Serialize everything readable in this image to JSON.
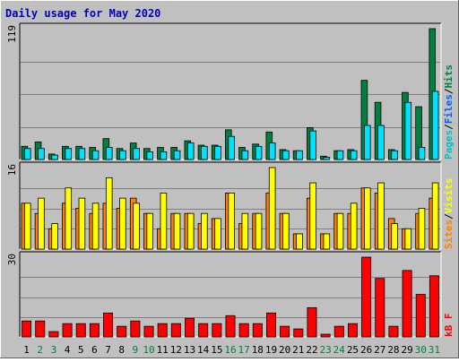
{
  "title": "Daily usage for May 2020",
  "colors": {
    "background": "#c0c0c0",
    "frame": "#ececec",
    "title": "#0000c0",
    "grid": "#808080",
    "hits": "#008040",
    "files": "#00e0ff",
    "pages": "#00c0c0",
    "sites": "#ffff00",
    "visits": "#ff8000",
    "kbytes": "#ff0000",
    "weekday_label": "#000000",
    "weekend_label": "#008040",
    "separator": "#000000"
  },
  "chart_data": [
    {
      "type": "bar",
      "panel": "hits-files-pages",
      "title": "",
      "ylabel_parts": [
        {
          "text": "Pages",
          "color": "#00c0c0"
        },
        {
          "text": "/",
          "color": "#000000"
        },
        {
          "text": "Files",
          "color": "#0060ff"
        },
        {
          "text": "/",
          "color": "#000000"
        },
        {
          "text": "Hits",
          "color": "#008040"
        }
      ],
      "ylim": [
        0,
        119
      ],
      "max_label": "119",
      "categories": [
        "1",
        "2",
        "3",
        "4",
        "5",
        "6",
        "7",
        "8",
        "9",
        "10",
        "11",
        "12",
        "13",
        "14",
        "15",
        "16",
        "17",
        "18",
        "19",
        "20",
        "21",
        "22",
        "23",
        "24",
        "25",
        "26",
        "27",
        "28",
        "29",
        "30",
        "31"
      ],
      "series": [
        {
          "key": "hits",
          "values": [
            12,
            16,
            5,
            12,
            12,
            11,
            19,
            10,
            15,
            10,
            11,
            11,
            17,
            13,
            13,
            27,
            11,
            14,
            25,
            9,
            8,
            29,
            3,
            8,
            9,
            72,
            52,
            9,
            61,
            48,
            119
          ]
        },
        {
          "key": "files",
          "values": [
            10,
            10,
            4,
            10,
            10,
            8,
            11,
            8,
            10,
            7,
            7,
            8,
            15,
            12,
            12,
            21,
            8,
            12,
            15,
            8,
            8,
            26,
            2,
            8,
            8,
            31,
            31,
            8,
            52,
            11,
            62
          ]
        },
        {
          "key": "pages",
          "values": [
            0,
            0,
            0,
            0,
            0,
            0,
            0,
            0,
            0,
            0,
            0,
            0,
            0,
            0,
            0,
            0,
            0,
            0,
            0,
            0,
            0,
            0,
            0,
            0,
            0,
            0,
            0,
            0,
            0,
            0,
            0
          ]
        }
      ],
      "weekends": [
        2,
        3,
        9,
        10,
        16,
        17,
        23,
        24,
        30,
        31
      ]
    },
    {
      "type": "bar",
      "panel": "visits-sites",
      "title": "",
      "ylabel_parts": [
        {
          "text": "Sites",
          "color": "#ff8000"
        },
        {
          "text": "/",
          "color": "#000000"
        },
        {
          "text": "Visits",
          "color": "#ffff00"
        }
      ],
      "ylim": [
        0,
        16
      ],
      "max_label": "16",
      "categories": [
        "1",
        "2",
        "3",
        "4",
        "5",
        "6",
        "7",
        "8",
        "9",
        "10",
        "11",
        "12",
        "13",
        "14",
        "15",
        "16",
        "17",
        "18",
        "19",
        "20",
        "21",
        "22",
        "23",
        "24",
        "25",
        "26",
        "27",
        "28",
        "29",
        "30",
        "31"
      ],
      "series": [
        {
          "key": "visits",
          "values": [
            9,
            7,
            4,
            9,
            8,
            7,
            9,
            8,
            10,
            7,
            4,
            7,
            7,
            5,
            6,
            11,
            5,
            7,
            11,
            7,
            3,
            10,
            3,
            7,
            7,
            12,
            11,
            6,
            4,
            7,
            10
          ]
        },
        {
          "key": "sites",
          "values": [
            9,
            10,
            5,
            12,
            10,
            9,
            14,
            10,
            9,
            7,
            11,
            7,
            7,
            7,
            6,
            11,
            7,
            7,
            16,
            7,
            3,
            13,
            3,
            7,
            9,
            12,
            13,
            5,
            4,
            8,
            13
          ]
        }
      ]
    },
    {
      "type": "bar",
      "panel": "kbytes",
      "title": "",
      "ylabel_parts": [
        {
          "text": "kB F",
          "color": "#ff0000"
        }
      ],
      "ylim": [
        0,
        30
      ],
      "max_label": "30",
      "categories": [
        "1",
        "2",
        "3",
        "4",
        "5",
        "6",
        "7",
        "8",
        "9",
        "10",
        "11",
        "12",
        "13",
        "14",
        "15",
        "16",
        "17",
        "18",
        "19",
        "20",
        "21",
        "22",
        "23",
        "24",
        "25",
        "26",
        "27",
        "28",
        "29",
        "30",
        "31"
      ],
      "series": [
        {
          "key": "kbytes",
          "values": [
            6,
            6,
            2,
            5,
            5,
            5,
            9,
            4,
            6,
            4,
            5,
            5,
            7,
            5,
            5,
            8,
            5,
            5,
            9,
            4,
            3,
            11,
            1,
            4,
            5,
            30,
            22,
            4,
            25,
            16,
            23
          ]
        }
      ]
    }
  ]
}
